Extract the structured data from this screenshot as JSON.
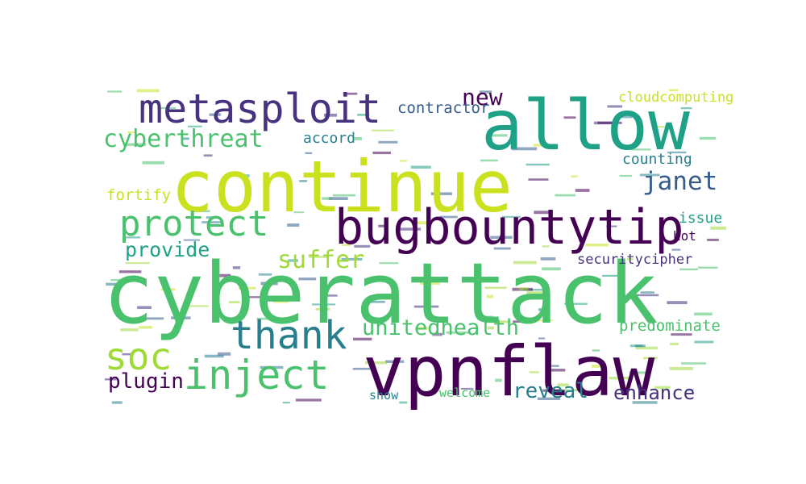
{
  "palette": {
    "background": "#ffffff",
    "dark_purple": "#440154",
    "purple": "#46327e",
    "blue": "#365c8d",
    "steel_blue": "#277f8e",
    "teal": "#1fa187",
    "green": "#4ac16d",
    "lime": "#a0da39",
    "yellow_green": "#cae11f"
  },
  "words": [
    {
      "text": "cyberattack",
      "color": "#4ac16d"
    },
    {
      "text": "continue",
      "color": "#cae11f"
    },
    {
      "text": "allow",
      "color": "#1fa187"
    },
    {
      "text": "vpnflaw",
      "color": "#440154"
    },
    {
      "text": "bugbountytip",
      "color": "#440154"
    },
    {
      "text": "metasploit",
      "color": "#46327e"
    },
    {
      "text": "protect",
      "color": "#4ac16d"
    },
    {
      "text": "thank",
      "color": "#277f8e"
    },
    {
      "text": "inject",
      "color": "#4ac16d"
    },
    {
      "text": "soc",
      "color": "#a0da39"
    },
    {
      "text": "cyberthreat",
      "color": "#4ac16d"
    },
    {
      "text": "suffer",
      "color": "#a0da39"
    },
    {
      "text": "janet",
      "color": "#365c8d"
    },
    {
      "text": "new",
      "color": "#440154"
    },
    {
      "text": "unitedhealth",
      "color": "#4ac16d"
    },
    {
      "text": "plugin",
      "color": "#440154"
    },
    {
      "text": "reveal",
      "color": "#277f8e"
    },
    {
      "text": "enhance",
      "color": "#46327e"
    },
    {
      "text": "provide",
      "color": "#1fa187"
    },
    {
      "text": "fortify",
      "color": "#cae11f"
    },
    {
      "text": "contractor",
      "color": "#365c8d"
    },
    {
      "text": "cloudcomputing",
      "color": "#cae11f"
    },
    {
      "text": "counting",
      "color": "#277f8e"
    },
    {
      "text": "predominate",
      "color": "#4ac16d"
    },
    {
      "text": "accord",
      "color": "#277f8e"
    },
    {
      "text": "securitycipher",
      "color": "#46327e"
    },
    {
      "text": "issue",
      "color": "#1fa187"
    },
    {
      "text": "hot",
      "color": "#440154"
    },
    {
      "text": "welcome",
      "color": "#4ac16d"
    },
    {
      "text": "show",
      "color": "#277f8e"
    }
  ]
}
